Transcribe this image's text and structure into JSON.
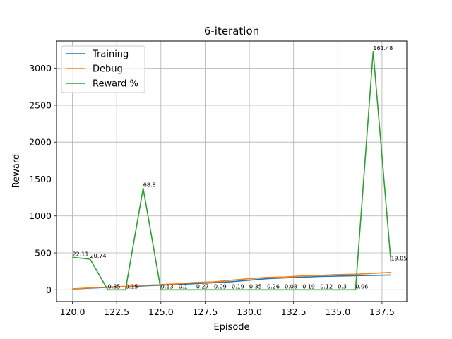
{
  "chart_data": {
    "type": "line",
    "title": "6-iteration",
    "xlabel": "Episode",
    "ylabel": "Reward",
    "xlim": [
      119.1,
      138.9
    ],
    "ylim": [
      -160,
      3370
    ],
    "xticks": [
      120.0,
      122.5,
      125.0,
      127.5,
      130.0,
      132.5,
      135.0,
      137.5
    ],
    "xtick_labels": [
      "120.0",
      "122.5",
      "125.0",
      "127.5",
      "130.0",
      "132.5",
      "135.0",
      "137.5"
    ],
    "yticks": [
      0,
      500,
      1000,
      1500,
      2000,
      2500,
      3000
    ],
    "ytick_labels": [
      "0",
      "500",
      "1000",
      "1500",
      "2000",
      "2500",
      "3000"
    ],
    "grid": true,
    "legend_position": "top-left",
    "x": [
      120,
      121,
      122,
      123,
      124,
      125,
      126,
      127,
      128,
      129,
      130,
      131,
      132,
      133,
      134,
      135,
      136,
      137,
      138
    ],
    "series": [
      {
        "name": "Training",
        "color": "#1f77b4",
        "values": [
          10,
          22,
          33,
          42,
          52,
          63,
          72,
          85,
          95,
          110,
          130,
          150,
          160,
          170,
          180,
          185,
          190,
          195,
          200
        ]
      },
      {
        "name": "Debug",
        "color": "#ff7f0e",
        "values": [
          12,
          27,
          37,
          47,
          60,
          70,
          82,
          100,
          108,
          130,
          150,
          167,
          173,
          187,
          195,
          205,
          210,
          222,
          235
        ]
      },
      {
        "name": "Reward %",
        "color": "#2ca02c",
        "values": [
          440,
          414,
          0,
          0,
          1376,
          0,
          0,
          0,
          0,
          0,
          0,
          0,
          0,
          0,
          0,
          0,
          0,
          3228,
          381
        ]
      }
    ],
    "annotations": [
      {
        "x": 120,
        "y": 440,
        "text": "22.11"
      },
      {
        "x": 121,
        "y": 414,
        "text": "20.74"
      },
      {
        "x": 122,
        "y": 0,
        "text": "0.35"
      },
      {
        "x": 123,
        "y": 0,
        "text": "0.15"
      },
      {
        "x": 124,
        "y": 1376,
        "text": "68.8"
      },
      {
        "x": 125,
        "y": 0,
        "text": "0.13"
      },
      {
        "x": 126,
        "y": 0,
        "text": "0.1"
      },
      {
        "x": 127,
        "y": 0,
        "text": "0.27"
      },
      {
        "x": 128,
        "y": 0,
        "text": "0.09"
      },
      {
        "x": 129,
        "y": 0,
        "text": "0.19"
      },
      {
        "x": 130,
        "y": 0,
        "text": "0.35"
      },
      {
        "x": 131,
        "y": 0,
        "text": "0.26"
      },
      {
        "x": 132,
        "y": 0,
        "text": "0.08"
      },
      {
        "x": 133,
        "y": 0,
        "text": "0.19"
      },
      {
        "x": 134,
        "y": 0,
        "text": "0.12"
      },
      {
        "x": 135,
        "y": 0,
        "text": "0.3"
      },
      {
        "x": 136,
        "y": 0,
        "text": "0.06"
      },
      {
        "x": 137,
        "y": 3228,
        "text": "161.48"
      },
      {
        "x": 138,
        "y": 381,
        "text": "19.05"
      }
    ]
  }
}
